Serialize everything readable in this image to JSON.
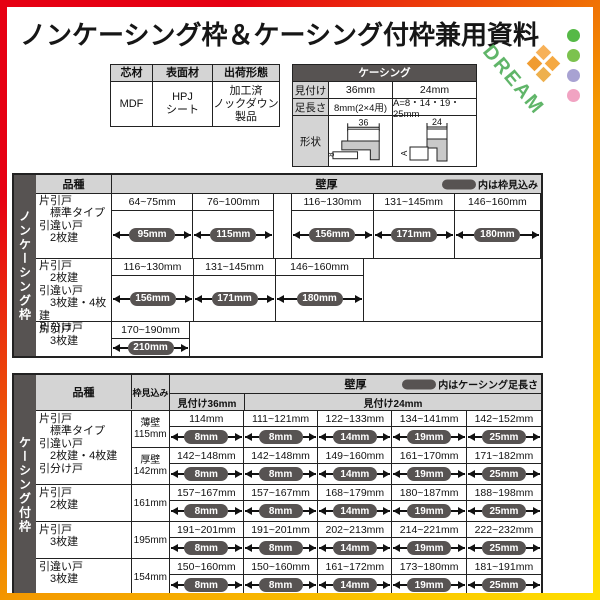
{
  "title": "ノンケーシング枠＆ケーシング付枠兼用資料",
  "logo": {
    "text": "DREAM"
  },
  "colors": {
    "frame_red": "#e60012",
    "frame_orange": "#f39800",
    "frame_yellow": "#ffdf00",
    "dark_gray": "#575352",
    "header_gray": "#d4d4d4",
    "logo_green": "#45a94f",
    "dot_green": "#56b947",
    "dot_light_green": "#7cc24e",
    "dot_lavender": "#a8a2d2",
    "dot_pink": "#f1a3c2",
    "diamond_orange_1": "#f7b158",
    "diamond_orange_2": "#f09b31",
    "diamond_orange_3": "#f5a942",
    "diamond_orange_4": "#eeb04d"
  },
  "spec_table": {
    "headers": [
      "芯材",
      "表面材",
      "出荷形態"
    ],
    "values": [
      "MDF",
      "HPJ\nシート",
      "加工済\nノックダウン\n製品"
    ]
  },
  "casing_table": {
    "title": "ケーシング",
    "rows": [
      {
        "label": "見付け",
        "col36": "36mm",
        "col24": "24mm"
      },
      {
        "label": "足長さ",
        "col36": "8mm(2×4用)",
        "col24": "A=8・14・19・25mm"
      },
      {
        "label": "形状"
      }
    ],
    "shape36": {
      "top_dim": "36",
      "side_dim": "8"
    },
    "shape24": {
      "top_dim": "24",
      "side_dim": "A"
    }
  },
  "table1": {
    "side_label": "ノンケーシング枠",
    "header": {
      "kind": "品種",
      "wall": "壁厚",
      "note": "内は枠見込み"
    },
    "rows": [
      {
        "label_lines": [
          "片引戸",
          "　標準タイプ",
          "引違い戸",
          "　2枚建"
        ],
        "cells": [
          {
            "range": "64~75mm",
            "pill": "95mm"
          },
          {
            "range": "76~100mm",
            "pill": "115mm"
          },
          {
            "range": "116~130mm",
            "pill": "156mm"
          },
          {
            "range": "131~145mm",
            "pill": "171mm"
          },
          {
            "range": "146~160mm",
            "pill": "180mm"
          }
        ]
      },
      {
        "label_lines": [
          "片引戸",
          "　2枚建",
          "引違い戸",
          "　3枚建・4枚建",
          "引分け戸"
        ],
        "cells": [
          {
            "range": "116~130mm",
            "pill": "156mm"
          },
          {
            "range": "131~145mm",
            "pill": "171mm"
          },
          {
            "range": "146~160mm",
            "pill": "180mm"
          }
        ]
      },
      {
        "label_lines": [
          "片引戸",
          "　3枚建"
        ],
        "cells": [
          {
            "range": "170~190mm",
            "pill": "210mm"
          }
        ]
      }
    ]
  },
  "table2": {
    "side_label": "ケーシング付枠",
    "header": {
      "kind": "品種",
      "mikomi": "枠見込み",
      "wall": "壁厚",
      "note": "内はケーシング足長さ",
      "sub36": "見付け36mm",
      "sub24": "見付け24mm"
    },
    "rows": [
      {
        "label_lines": [
          "片引戸",
          "　標準タイプ",
          "引違い戸",
          "　2枚建・4枚建",
          "引分け戸"
        ],
        "subrows": [
          {
            "mikomi_lines": "薄壁\n115mm",
            "cells": [
              {
                "range": "114mm",
                "pill": "8mm"
              },
              {
                "range": "111~121mm",
                "pill": "8mm"
              },
              {
                "range": "122~133mm",
                "pill": "14mm"
              },
              {
                "range": "134~141mm",
                "pill": "19mm"
              },
              {
                "range": "142~152mm",
                "pill": "25mm"
              }
            ]
          },
          {
            "mikomi_lines": "厚壁\n142mm",
            "cells": [
              {
                "range": "142~148mm",
                "pill": "8mm"
              },
              {
                "range": "142~148mm",
                "pill": "8mm"
              },
              {
                "range": "149~160mm",
                "pill": "14mm"
              },
              {
                "range": "161~170mm",
                "pill": "19mm"
              },
              {
                "range": "171~182mm",
                "pill": "25mm"
              }
            ]
          }
        ]
      },
      {
        "label_lines": [
          "片引戸",
          "　2枚建"
        ],
        "subrows": [
          {
            "mikomi_lines": "161mm",
            "cells": [
              {
                "range": "157~167mm",
                "pill": "8mm"
              },
              {
                "range": "157~167mm",
                "pill": "8mm"
              },
              {
                "range": "168~179mm",
                "pill": "14mm"
              },
              {
                "range": "180~187mm",
                "pill": "19mm"
              },
              {
                "range": "188~198mm",
                "pill": "25mm"
              }
            ]
          }
        ]
      },
      {
        "label_lines": [
          "片引戸",
          "　3枚建"
        ],
        "subrows": [
          {
            "mikomi_lines": "195mm",
            "cells": [
              {
                "range": "191~201mm",
                "pill": "8mm"
              },
              {
                "range": "191~201mm",
                "pill": "8mm"
              },
              {
                "range": "202~213mm",
                "pill": "14mm"
              },
              {
                "range": "214~221mm",
                "pill": "19mm"
              },
              {
                "range": "222~232mm",
                "pill": "25mm"
              }
            ]
          }
        ]
      },
      {
        "label_lines": [
          "引違い戸",
          "　3枚建"
        ],
        "subrows": [
          {
            "mikomi_lines": "154mm",
            "cells": [
              {
                "range": "150~160mm",
                "pill": "8mm"
              },
              {
                "range": "150~160mm",
                "pill": "8mm"
              },
              {
                "range": "161~172mm",
                "pill": "14mm"
              },
              {
                "range": "173~180mm",
                "pill": "19mm"
              },
              {
                "range": "181~191mm",
                "pill": "25mm"
              }
            ]
          }
        ]
      }
    ]
  }
}
